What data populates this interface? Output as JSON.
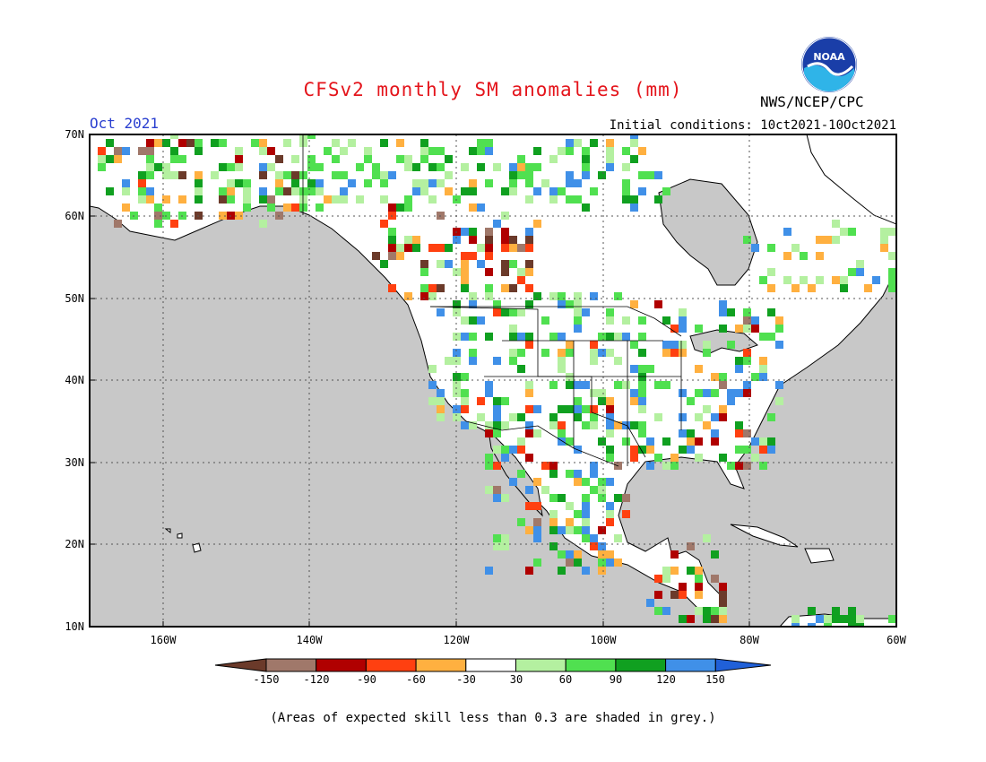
{
  "header": {
    "title": "CFSv2 monthly SM anomalies (mm)",
    "month": "Oct 2021",
    "agency": "NWS/NCEP/CPC",
    "initial_conditions": "Initial conditions: 10ct2021-10Oct2021",
    "logo_text": "NOAA"
  },
  "map": {
    "lat_range": [
      10,
      70
    ],
    "lon_range": [
      -170,
      -60
    ],
    "lat_labels": [
      "70N",
      "60N",
      "50N",
      "40N",
      "30N",
      "20N",
      "10N"
    ],
    "lon_labels": [
      "160W",
      "140W",
      "120W",
      "100W",
      "80W",
      "60W"
    ],
    "colors": {
      "ocean_grey": "#c8c8c8",
      "land_white": "#ffffff",
      "coast": "#000000"
    }
  },
  "legend": {
    "ticks": [
      "-150",
      "-120",
      "-90",
      "-60",
      "-30",
      "30",
      "60",
      "90",
      "120",
      "150"
    ],
    "colors": [
      "#6b3a2a",
      "#a0786a",
      "#b00000",
      "#ff4010",
      "#ffb040",
      "#ffffff",
      "#b4f0a0",
      "#50e050",
      "#10a020",
      "#4090e8",
      "#2060d8"
    ],
    "note": "(Areas of expected skill less than 0.3 are shaded in grey.)"
  }
}
